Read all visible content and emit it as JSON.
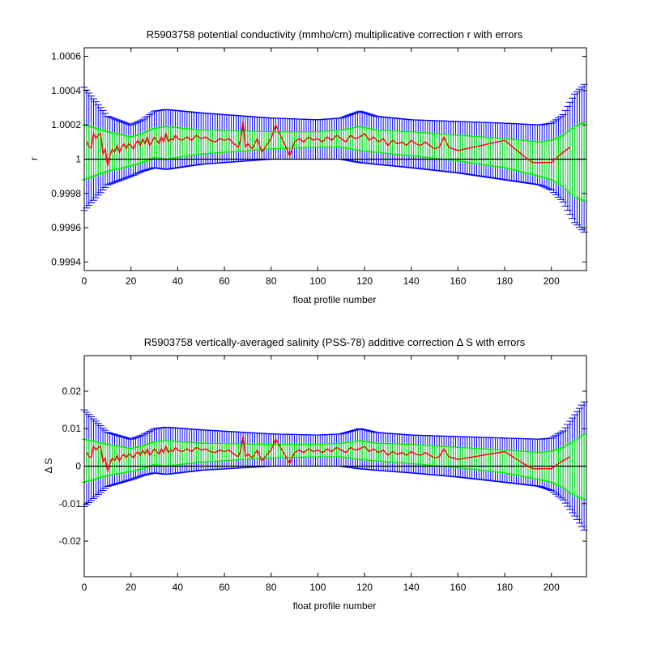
{
  "chart_data": [
    {
      "type": "line",
      "title": "R5903758 potential conductivity (mmho/cm) multiplicative correction r with errors",
      "xlabel": "float profile number",
      "ylabel": "r",
      "xlim": [
        0,
        215
      ],
      "ylim": [
        0.99935,
        1.00065
      ],
      "xticks": [
        0,
        20,
        40,
        60,
        80,
        100,
        120,
        140,
        160,
        180,
        200
      ],
      "yticks": [
        0.9994,
        0.9996,
        0.9998,
        1,
        1.0002,
        1.0004,
        1.0006
      ],
      "ytick_labels": [
        "0.9994",
        "0.9996",
        "0.9998",
        "1",
        "1.0002",
        "1.0004",
        "1.0006"
      ],
      "reference_line": 1,
      "grid": false,
      "series": [
        {
          "color": "#ff0000",
          "x": [
            1,
            2,
            3,
            4,
            5,
            6,
            7,
            8,
            9,
            10,
            11,
            12,
            13,
            14,
            15,
            16,
            17,
            18,
            19,
            20,
            21,
            22,
            23,
            24,
            25,
            26,
            27,
            28,
            29,
            30,
            31,
            32,
            33,
            34,
            35,
            36,
            37,
            38,
            39,
            40,
            42,
            44,
            46,
            48,
            50,
            52,
            54,
            56,
            58,
            60,
            62,
            64,
            66,
            67,
            68,
            69,
            70,
            72,
            74,
            76,
            78,
            80,
            82,
            84,
            86,
            88,
            90,
            92,
            94,
            96,
            98,
            100,
            102,
            104,
            106,
            108,
            110,
            112,
            114,
            116,
            118,
            119,
            120,
            122,
            124,
            126,
            128,
            130,
            132,
            134,
            136,
            138,
            140,
            142,
            144,
            146,
            148,
            150,
            152,
            154,
            156,
            158,
            160,
            180,
            188,
            192,
            196,
            200,
            204,
            208
          ],
          "values": [
            1.000106,
            1.000072,
            1.000064,
            1.00015,
            1.00012,
            1.00014,
            1.00015,
            1.00003,
            1.00006,
            0.99996,
            1.00002,
            1.00006,
            1.00004,
            1.00008,
            1.00004,
            1.00007,
            1.00009,
            1.00006,
            1.00009,
            1.00008,
            1.00006,
            1.00009,
            1.00011,
            1.00008,
            1.00012,
            1.00009,
            1.00013,
            1.00008,
            1.0001,
            1.00013,
            1.00011,
            1.00009,
            1.00013,
            1.0001,
            1.00015,
            1.0001,
            1.00012,
            1.00011,
            1.00014,
            1.00012,
            1.00011,
            1.00013,
            1.00011,
            1.00014,
            1.00012,
            1.00013,
            1.00011,
            1.0001,
            1.00012,
            1.00011,
            1.00012,
            1.00009,
            1.00007,
            1.00012,
            1.00022,
            1.00007,
            1.00009,
            1.00006,
            1.00012,
            1.00004,
            1.00008,
            1.00012,
            1.0002,
            1.00014,
            1.00008,
            1.00002,
            1.0001,
            1.00012,
            1.0001,
            1.00013,
            1.00011,
            1.00012,
            1.0001,
            1.00013,
            1.00011,
            1.00014,
            1.00012,
            1.0001,
            1.00014,
            1.00012,
            1.00013,
            1.00014,
            1.00015,
            1.00011,
            1.00013,
            1.0001,
            1.00012,
            1.00008,
            1.00011,
            1.00009,
            1.0001,
            1.00008,
            1.00011,
            1.00009,
            1.00008,
            1.0001,
            1.00008,
            1.00006,
            1.00007,
            1.00013,
            1.00007,
            1.00006,
            1.00005,
            1.00011,
            1.00002,
            0.99998,
            0.99998,
            0.99998,
            1.00003,
            1.00007
          ]
        }
      ],
      "error_bands": [
        {
          "color": "#0000ff",
          "x": [
            0,
            10,
            20,
            25,
            30,
            35,
            50,
            80,
            100,
            110,
            118,
            125,
            140,
            160,
            180,
            195,
            200,
            205,
            210,
            215
          ],
          "upper": [
            1.00042,
            1.00025,
            1.0002,
            1.00023,
            1.00028,
            1.00029,
            1.00027,
            1.00024,
            1.00023,
            1.00024,
            1.00028,
            1.00025,
            1.00023,
            1.00022,
            1.00021,
            1.0002,
            1.00021,
            1.00026,
            1.00038,
            1.00045
          ],
          "lower": [
            0.9997,
            0.99985,
            0.9999,
            0.99993,
            0.99995,
            0.99994,
            0.99997,
            1.0,
            1.0,
            1.0,
            0.99998,
            0.99997,
            0.99995,
            0.99992,
            0.99988,
            0.99985,
            0.99982,
            0.99975,
            0.99963,
            0.99956
          ]
        },
        {
          "color": "#00ee00",
          "x": [
            0,
            10,
            20,
            25,
            30,
            35,
            50,
            80,
            100,
            110,
            118,
            125,
            140,
            160,
            180,
            195,
            200,
            205,
            210,
            215
          ],
          "upper": [
            1.0002,
            1.00016,
            1.00013,
            1.00015,
            1.00018,
            1.00019,
            1.00017,
            1.00016,
            1.00016,
            1.00017,
            1.00019,
            1.00017,
            1.00016,
            1.00014,
            1.00012,
            1.0001,
            1.00011,
            1.00014,
            1.00019,
            1.00022
          ],
          "lower": [
            0.99988,
            0.99993,
            0.99996,
            0.99998,
            1.00001,
            1.0,
            1.00003,
            1.00006,
            1.00007,
            1.00007,
            1.00005,
            1.00004,
            1.00002,
            0.99999,
            0.99995,
            0.9999,
            0.99988,
            0.99984,
            0.99978,
            0.99975
          ]
        }
      ]
    },
    {
      "type": "line",
      "title": "R5903758 vertically-averaged salinity (PSS-78) additive correction Δ S with errors",
      "xlabel": "float profile number",
      "ylabel": "Δ S",
      "xlim": [
        0,
        215
      ],
      "ylim": [
        -0.0295,
        0.0295
      ],
      "xticks": [
        0,
        20,
        40,
        60,
        80,
        100,
        120,
        140,
        160,
        180,
        200
      ],
      "yticks": [
        -0.02,
        -0.01,
        0,
        0.01,
        0.02
      ],
      "ytick_labels": [
        "-0.02",
        "-0.01",
        "0",
        "0.01",
        "0.02"
      ],
      "reference_line": 0,
      "grid": false,
      "series": [
        {
          "color": "#ff0000",
          "x": [
            1,
            2,
            3,
            4,
            5,
            6,
            7,
            8,
            9,
            10,
            11,
            12,
            13,
            14,
            15,
            16,
            17,
            18,
            19,
            20,
            21,
            22,
            23,
            24,
            25,
            26,
            27,
            28,
            29,
            30,
            31,
            32,
            33,
            34,
            35,
            36,
            37,
            38,
            39,
            40,
            42,
            44,
            46,
            48,
            50,
            52,
            54,
            56,
            58,
            60,
            62,
            64,
            66,
            67,
            68,
            69,
            70,
            72,
            74,
            76,
            78,
            80,
            82,
            84,
            86,
            88,
            90,
            92,
            94,
            96,
            98,
            100,
            102,
            104,
            106,
            108,
            110,
            112,
            114,
            116,
            118,
            119,
            120,
            122,
            124,
            126,
            128,
            130,
            132,
            134,
            136,
            138,
            140,
            142,
            144,
            146,
            148,
            150,
            152,
            154,
            156,
            158,
            160,
            180,
            188,
            192,
            196,
            200,
            204,
            208
          ],
          "values": [
            0.0038,
            0.0026,
            0.0023,
            0.0053,
            0.0043,
            0.005,
            0.0053,
            0.0011,
            0.0022,
            -0.0014,
            0.0007,
            0.0022,
            0.0014,
            0.0029,
            0.0014,
            0.0025,
            0.0032,
            0.0022,
            0.0032,
            0.0029,
            0.0022,
            0.0032,
            0.0039,
            0.0029,
            0.0043,
            0.0032,
            0.0046,
            0.0029,
            0.0036,
            0.0046,
            0.0039,
            0.0032,
            0.0046,
            0.0036,
            0.0053,
            0.0036,
            0.0043,
            0.0039,
            0.005,
            0.0043,
            0.0039,
            0.0046,
            0.0039,
            0.005,
            0.0043,
            0.0046,
            0.0039,
            0.0036,
            0.0043,
            0.0039,
            0.0043,
            0.0032,
            0.0025,
            0.0043,
            0.008,
            0.0025,
            0.0032,
            0.0022,
            0.0043,
            0.0014,
            0.0029,
            0.0043,
            0.0072,
            0.005,
            0.0029,
            0.0007,
            0.0036,
            0.0043,
            0.0036,
            0.0046,
            0.0039,
            0.0043,
            0.0036,
            0.0046,
            0.0039,
            0.005,
            0.0043,
            0.0036,
            0.005,
            0.0043,
            0.0046,
            0.005,
            0.0053,
            0.0039,
            0.0046,
            0.0036,
            0.0043,
            0.0029,
            0.0039,
            0.0032,
            0.0036,
            0.0029,
            0.0039,
            0.0032,
            0.0029,
            0.0036,
            0.0029,
            0.0022,
            0.0025,
            0.0046,
            0.0025,
            0.0022,
            0.0018,
            0.0039,
            0.0007,
            -0.0007,
            -0.0007,
            -0.0007,
            0.0011,
            0.0025
          ]
        }
      ],
      "error_bands": [
        {
          "color": "#0000ff",
          "x": [
            0,
            10,
            20,
            25,
            30,
            35,
            50,
            80,
            100,
            110,
            118,
            125,
            140,
            160,
            180,
            195,
            200,
            205,
            210,
            215
          ],
          "upper": [
            0.015,
            0.009,
            0.0072,
            0.0083,
            0.01,
            0.0104,
            0.0097,
            0.0086,
            0.0083,
            0.0086,
            0.01,
            0.009,
            0.0083,
            0.0079,
            0.0075,
            0.0072,
            0.0075,
            0.0094,
            0.0137,
            0.018
          ],
          "lower": [
            -0.0108,
            -0.0054,
            -0.0036,
            -0.0025,
            -0.0018,
            -0.0022,
            -0.0011,
            0.0,
            0.0,
            0.0,
            -0.0007,
            -0.0011,
            -0.0018,
            -0.0029,
            -0.0043,
            -0.0054,
            -0.0065,
            -0.009,
            -0.0133,
            -0.018
          ]
        },
        {
          "color": "#00ee00",
          "x": [
            0,
            10,
            20,
            25,
            30,
            35,
            50,
            80,
            100,
            110,
            118,
            125,
            140,
            160,
            180,
            195,
            200,
            205,
            210,
            215
          ],
          "upper": [
            0.0072,
            0.0058,
            0.0047,
            0.0054,
            0.0065,
            0.0068,
            0.0061,
            0.0058,
            0.0058,
            0.0061,
            0.0068,
            0.0061,
            0.0058,
            0.005,
            0.0043,
            0.0036,
            0.004,
            0.005,
            0.0068,
            0.009
          ],
          "lower": [
            -0.0043,
            -0.0025,
            -0.0014,
            -0.0007,
            0.0004,
            0.0,
            0.0011,
            0.0022,
            0.0025,
            0.0025,
            0.0018,
            0.0014,
            0.0007,
            -0.0004,
            -0.0018,
            -0.0036,
            -0.0043,
            -0.0058,
            -0.0079,
            -0.009
          ]
        }
      ]
    }
  ]
}
